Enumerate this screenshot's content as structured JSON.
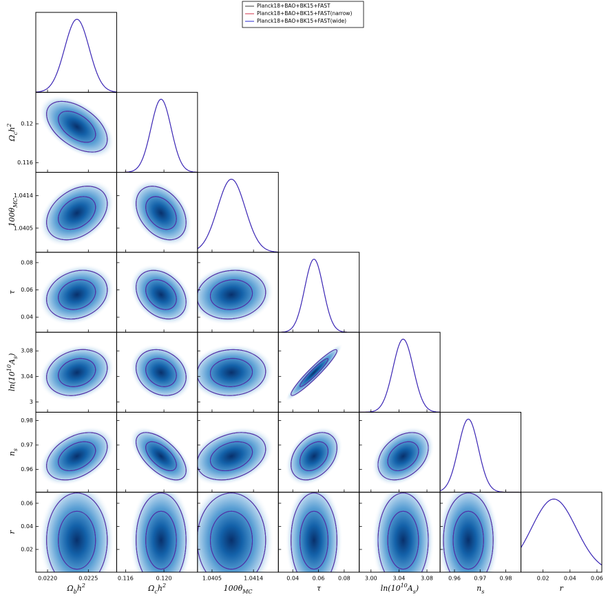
{
  "chart_data": {
    "type": "triangle",
    "series": [
      {
        "name": "Planck18+BAO+BK15+FAST",
        "color": "#3a3a3a"
      },
      {
        "name": "Planck18+BAO+BK15+FAST(narrow)",
        "color": "#d2304a"
      },
      {
        "name": "Planck18+BAO+BK15+FAST(wide)",
        "color": "#2a2ad0"
      }
    ],
    "params": [
      {
        "label": [
          [
            "Ω",
            ""
          ],
          [
            "b",
            "sub"
          ],
          [
            "h",
            ""
          ],
          [
            "2",
            "sup"
          ]
        ],
        "xlim": [
          0.021856,
          0.022847
        ],
        "xticks": [
          {
            "value": 0.022,
            "label": "0.0220"
          },
          0.0225
        ],
        "mean": 0.02236,
        "sigma": 0.00015
      },
      {
        "label": [
          [
            "Ω",
            ""
          ],
          [
            "c",
            "sub"
          ],
          [
            "h",
            ""
          ],
          [
            "2",
            "sup"
          ]
        ],
        "xlim": [
          0.11507,
          0.1235
        ],
        "xticks": [
          0.116,
          {
            "value": 0.12,
            "label": "0.120"
          }
        ],
        "ylim": [
          0.11502,
          0.12323
        ],
        "yticks": [
          0.116,
          0.12
        ],
        "mean": 0.1197,
        "sigma": 0.00105
      },
      {
        "label": [
          [
            "100θ",
            ""
          ],
          [
            "MC",
            "sub"
          ]
        ],
        "xlim": [
          1.040185,
          1.04194
        ],
        "xticks": [
          1.0405,
          1.0414
        ],
        "ylim": [
          1.03983,
          1.04205
        ],
        "yticks": [
          1.0405,
          1.0414
        ],
        "mean": 1.04092,
        "sigma": 0.0003
      },
      {
        "label": [
          [
            "τ",
            ""
          ]
        ],
        "xlim": [
          0.0288,
          0.0917
        ],
        "xticks": [
          0.04,
          0.06,
          0.08
        ],
        "ylim": [
          0.0289,
          0.0876
        ],
        "yticks": [
          0.04,
          0.06,
          0.08
        ],
        "mean": 0.0565,
        "sigma": 0.0072
      },
      {
        "label": [
          [
            "ln(10",
            ""
          ],
          [
            "10",
            "sup"
          ],
          [
            "A",
            ""
          ],
          [
            "s",
            "sub"
          ],
          [
            ")",
            ""
          ]
        ],
        "xlim": [
          2.9832,
          3.0988
        ],
        "xticks": [
          {
            "value": 3,
            "label": "3.00"
          },
          3.04,
          3.08
        ],
        "ylim": [
          2.9838,
          3.1092
        ],
        "yticks": [
          3,
          3.04,
          3.08
        ],
        "mean": 3.046,
        "sigma": 0.0145
      },
      {
        "label": [
          [
            "n",
            ""
          ],
          [
            "s",
            "sub"
          ]
        ],
        "xlim": [
          0.9544,
          0.9859
        ],
        "xticks": [
          0.96,
          0.97,
          0.98
        ],
        "ylim": [
          0.9507,
          0.98338
        ],
        "yticks": [
          0.96,
          0.97,
          0.98
        ],
        "mean": 0.9654,
        "sigma": 0.0039
      },
      {
        "label": [
          [
            "r",
            ""
          ]
        ],
        "xlim": [
          0.0036,
          0.0636
        ],
        "xticks": [
          0.02,
          0.04,
          0.06
        ],
        "ylim": [
          0.0003,
          0.0696
        ],
        "yticks": [
          0.02,
          0.04,
          0.06
        ],
        "mean": 0.028,
        "sigma": 0.0165
      }
    ],
    "correlations": [
      [
        -0.5
      ],
      [
        0.35,
        -0.35
      ],
      [
        0.2,
        -0.3,
        0.1
      ],
      [
        0.2,
        -0.2,
        0.05,
        0.95
      ],
      [
        0.4,
        -0.6,
        0.3,
        0.35,
        0.35
      ],
      [
        0,
        0,
        0,
        0,
        0,
        0
      ]
    ]
  }
}
